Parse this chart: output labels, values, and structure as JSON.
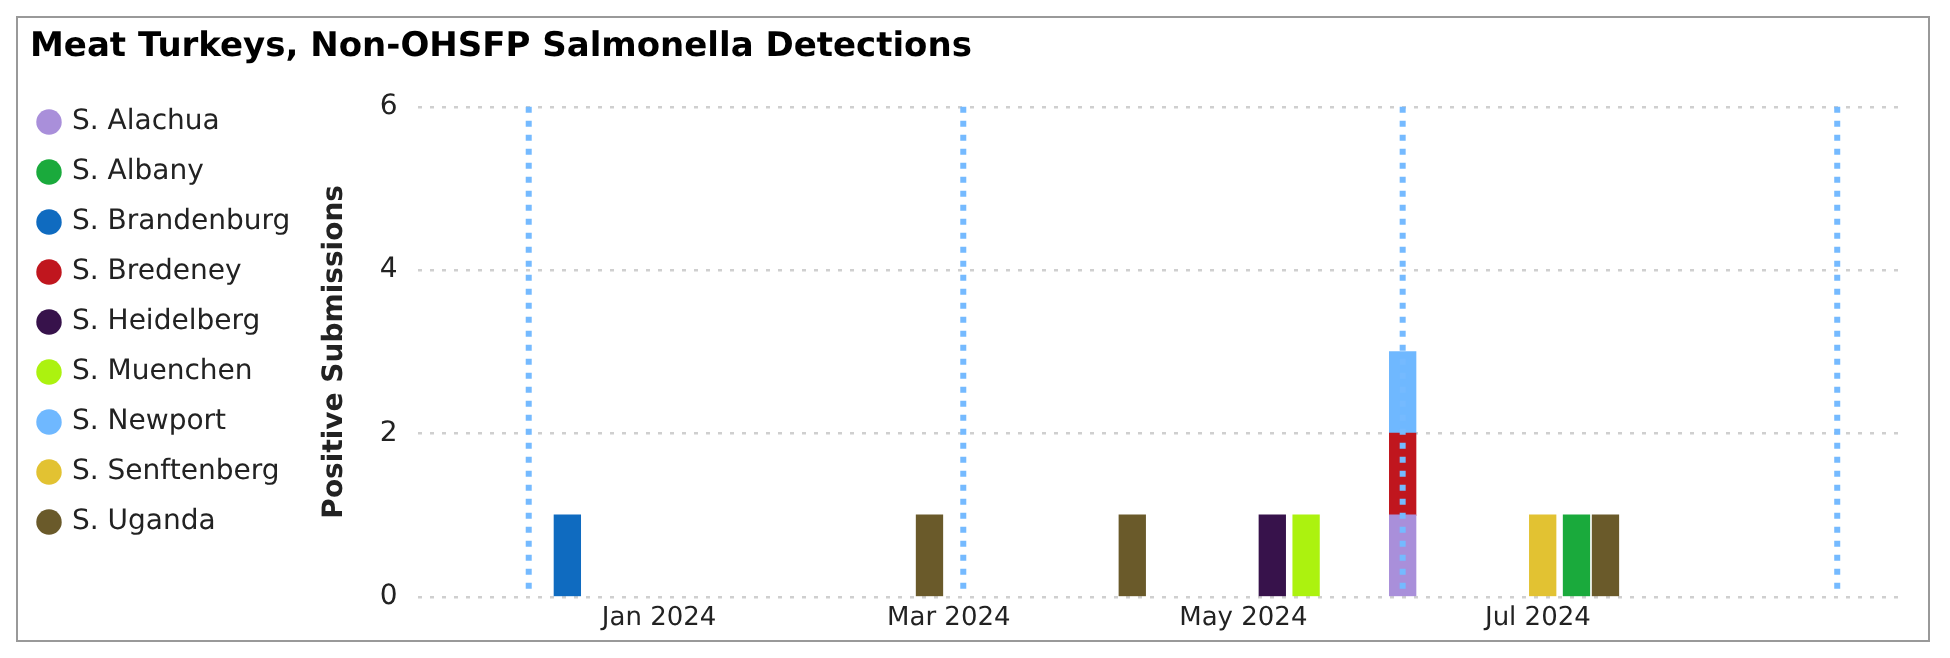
{
  "chart_data": {
    "type": "bar",
    "title": "Meat Turkeys, Non-OHSFP Salmonella Detections",
    "ylabel": "Positive Submissions",
    "stacked": true,
    "legend": "left",
    "grid": "y",
    "x": [
      "2023-12-13",
      "2024-02-26",
      "2024-04-08",
      "2024-05-07",
      "2024-05-14",
      "2024-06-03",
      "2024-07-02",
      "2024-07-09",
      "2024-07-15"
    ],
    "xlim": [
      "2023-11-12",
      "2024-09-14"
    ],
    "xticks": [
      {
        "value": "2024-01-01",
        "label": "Jan 2024"
      },
      {
        "value": "2024-03-01",
        "label": "Mar 2024"
      },
      {
        "value": "2024-05-01",
        "label": "May 2024"
      },
      {
        "value": "2024-07-01",
        "label": "Jul 2024"
      }
    ],
    "ylim": [
      0,
      6
    ],
    "yticks": [
      0,
      2,
      4,
      6
    ],
    "ref_lines": [
      {
        "axis": "x",
        "value": "2023-12-05",
        "color": "#75baff",
        "line_style": "dotted"
      },
      {
        "axis": "x",
        "value": "2024-03-04",
        "color": "#75baff",
        "line_style": "dotted"
      },
      {
        "axis": "x",
        "value": "2024-06-03",
        "color": "#75baff",
        "line_style": "dotted"
      },
      {
        "axis": "x",
        "value": "2024-09-01",
        "color": "#75baff",
        "line_style": "dotted"
      }
    ],
    "series": [
      {
        "name": "S. Alachua",
        "color": "#a98fda",
        "values": [
          null,
          null,
          null,
          null,
          null,
          1,
          null,
          null,
          null
        ]
      },
      {
        "name": "S. Albany",
        "color": "#1aaa3c",
        "values": [
          null,
          null,
          null,
          null,
          null,
          null,
          null,
          1,
          null
        ]
      },
      {
        "name": "S. Brandenburg",
        "color": "#0f6bc0",
        "values": [
          1,
          null,
          null,
          null,
          null,
          null,
          null,
          null,
          null
        ]
      },
      {
        "name": "S. Bredeney",
        "color": "#c0161e",
        "values": [
          null,
          null,
          null,
          null,
          null,
          1,
          null,
          null,
          null
        ]
      },
      {
        "name": "S. Heidelberg",
        "color": "#37124b",
        "values": [
          null,
          null,
          null,
          1,
          null,
          null,
          null,
          null,
          null
        ]
      },
      {
        "name": "S. Muenchen",
        "color": "#acf20f",
        "values": [
          null,
          null,
          null,
          null,
          1,
          null,
          null,
          null,
          null
        ]
      },
      {
        "name": "S. Newport",
        "color": "#6fb8ff",
        "values": [
          null,
          null,
          null,
          null,
          null,
          1,
          null,
          null,
          null
        ]
      },
      {
        "name": "S. Senftenberg",
        "color": "#e2c232",
        "values": [
          null,
          null,
          null,
          null,
          null,
          null,
          1,
          null,
          null
        ]
      },
      {
        "name": "S. Uganda",
        "color": "#6a5a2a",
        "values": [
          null,
          1,
          1,
          null,
          null,
          null,
          null,
          null,
          1
        ]
      }
    ]
  }
}
